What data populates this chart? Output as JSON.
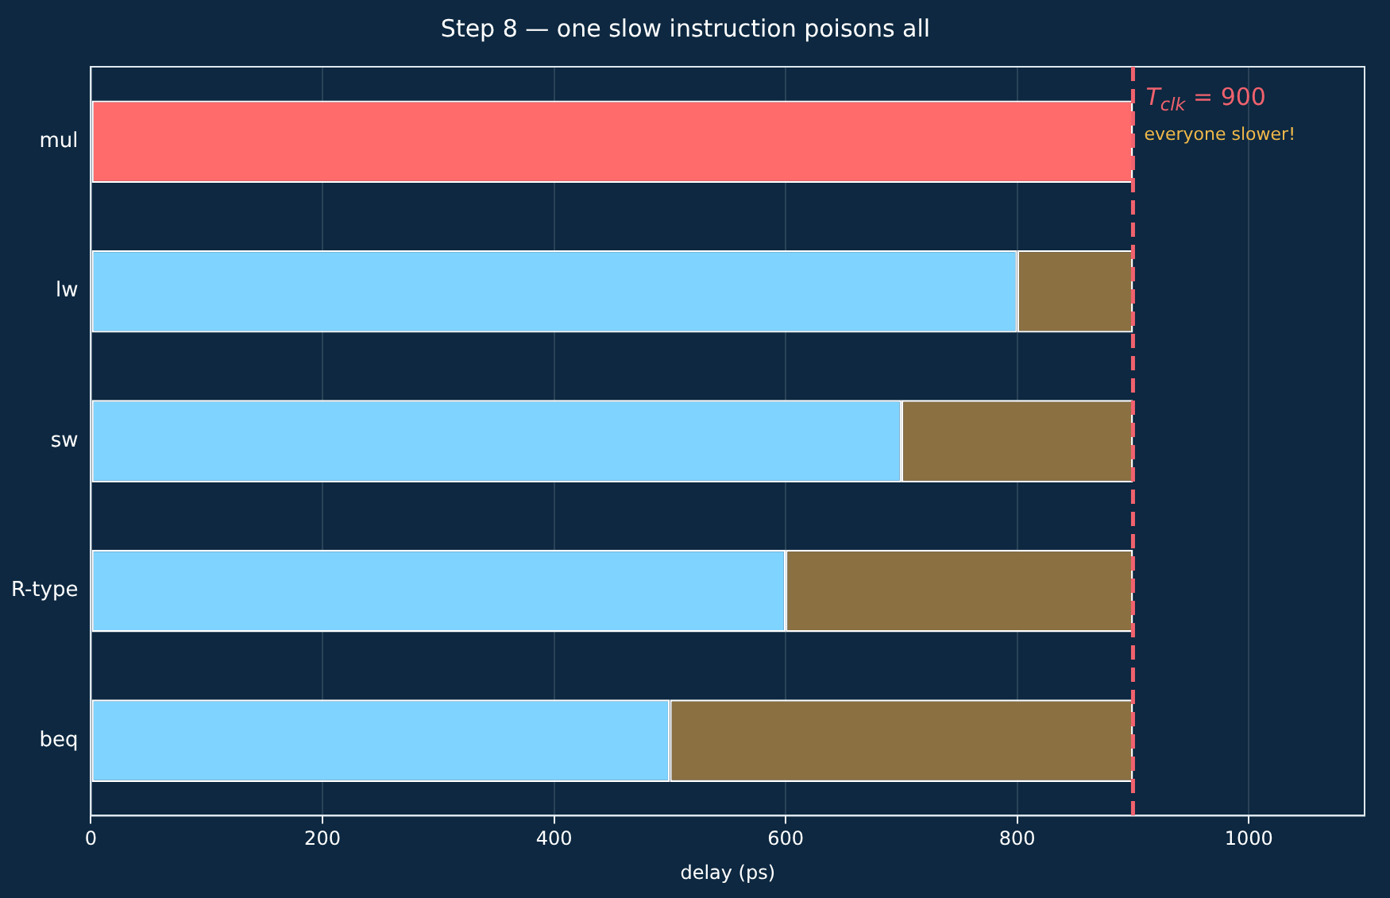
{
  "chart_data": {
    "type": "bar",
    "orientation": "horizontal",
    "stacked": true,
    "title": "Step 8 — one slow instruction poisons all",
    "xlabel": "delay (ps)",
    "categories": [
      "mul",
      "lw",
      "sw",
      "R-type",
      "beq"
    ],
    "series": [
      {
        "colors": [
          "#ff6b6b",
          "#7fd3ff",
          "#7fd3ff",
          "#7fd3ff",
          "#7fd3ff"
        ],
        "values": [
          900,
          800,
          700,
          600,
          500
        ]
      },
      {
        "color": "#8b7042",
        "values": [
          0,
          100,
          200,
          300,
          400
        ]
      }
    ],
    "xlim": [
      0,
      1100
    ],
    "xticks": [
      0,
      200,
      400,
      600,
      800,
      1000
    ],
    "grid": "x",
    "legend": false,
    "ref_lines": [
      {
        "axis": "x",
        "value": 900,
        "label": "T$_{clk}$ = 900",
        "color": "#f0626e",
        "line_style": "dashed"
      }
    ],
    "annotations": [
      {
        "text": "everyone slower!",
        "x": 900,
        "y": "mul"
      }
    ]
  }
}
